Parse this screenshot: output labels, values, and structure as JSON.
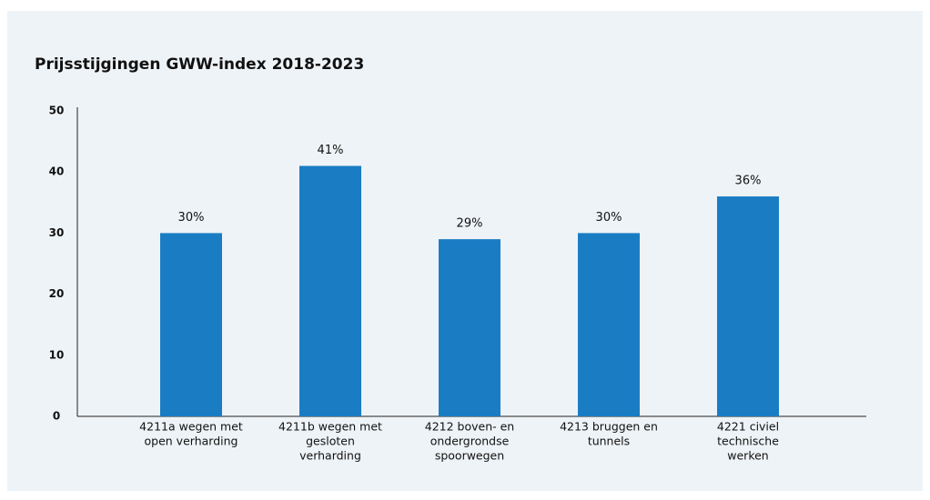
{
  "chart_data": {
    "type": "bar",
    "title": "Prijsstijgingen GWW-index 2018-2023",
    "categories": [
      [
        "4211a wegen met",
        "open verharding"
      ],
      [
        "4211b wegen met",
        "gesloten",
        "verharding"
      ],
      [
        "4212 boven- en",
        "ondergrondse",
        "spoorwegen"
      ],
      [
        "4213 bruggen en",
        "tunnels"
      ],
      [
        "4221 civiel",
        "technische",
        "werken"
      ]
    ],
    "values": [
      30,
      41,
      29,
      30,
      36
    ],
    "value_labels": [
      "30%",
      "41%",
      "29%",
      "30%",
      "36%"
    ],
    "color": "#1a7dc4",
    "ylim": [
      0,
      50
    ],
    "yticks": [
      0,
      10,
      20,
      30,
      40,
      50
    ],
    "grid": false
  }
}
